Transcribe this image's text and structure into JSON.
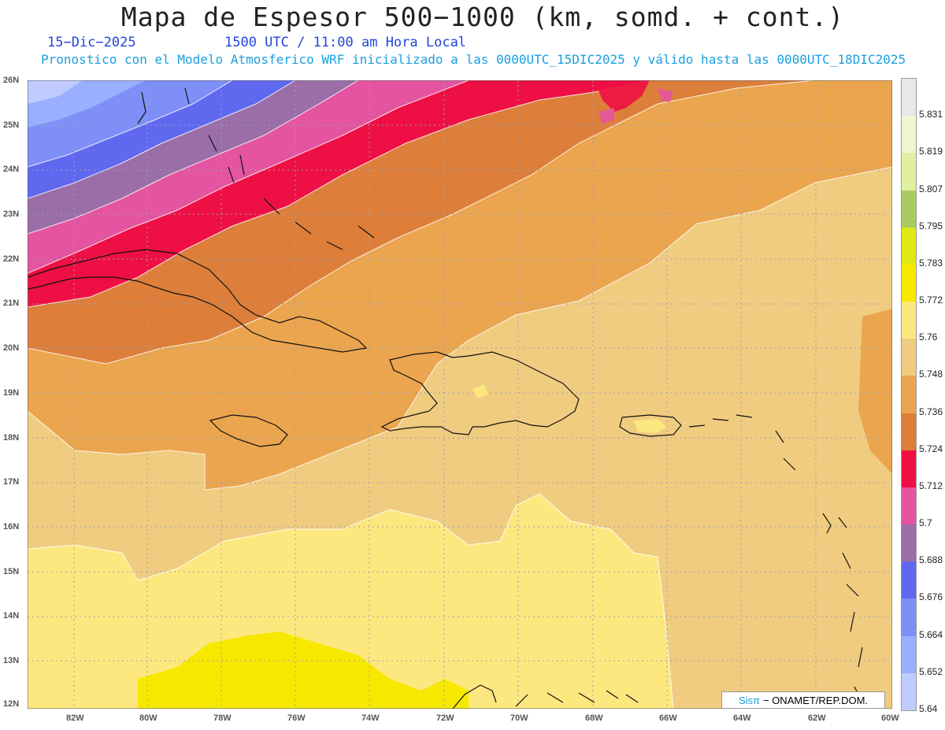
{
  "title": "Mapa de Espesor 500−1000 (km, somd. + cont.)",
  "date": "15−Dic−2025",
  "time": "1500 UTC / 11:00 am Hora Local",
  "model_info": "Pronostico con el Modelo Atmosferico WRF inicializado a las 0000UTC_15DIC2025 y válido hasta las  0000UTC_18DIC2025",
  "lat_labels": [
    "26N",
    "25N",
    "24N",
    "23N",
    "22N",
    "21N",
    "20N",
    "19N",
    "18N",
    "17N",
    "16N",
    "15N",
    "14N",
    "13N",
    "12N"
  ],
  "lon_labels": [
    "82W",
    "80W",
    "78W",
    "76W",
    "74W",
    "72W",
    "70W",
    "68W",
    "66W",
    "64W",
    "62W",
    "60W"
  ],
  "legend": {
    "labels": [
      "5.831",
      "5.819",
      "5.807",
      "5.795",
      "5.783",
      "5.772",
      "5.76",
      "5.748",
      "5.736",
      "5.724",
      "5.712",
      "5.7",
      "5.688",
      "5.676",
      "5.664",
      "5.652",
      "5.64"
    ],
    "colors": [
      "#e8e8e8",
      "#f2f5d0",
      "#e0f0a0",
      "#a8cc60",
      "#e0e818",
      "#f8e800",
      "#fde880",
      "#f0cc80",
      "#eba54e",
      "#dd7f3a",
      "#ee1044",
      "#e454a0",
      "#9b6ea8",
      "#6068f0",
      "#7f8ff8",
      "#98b0ff",
      "#c0ccff"
    ]
  },
  "credit": {
    "sis": "Sisπ",
    "org": "− ONAMET/REP.DOM."
  }
}
